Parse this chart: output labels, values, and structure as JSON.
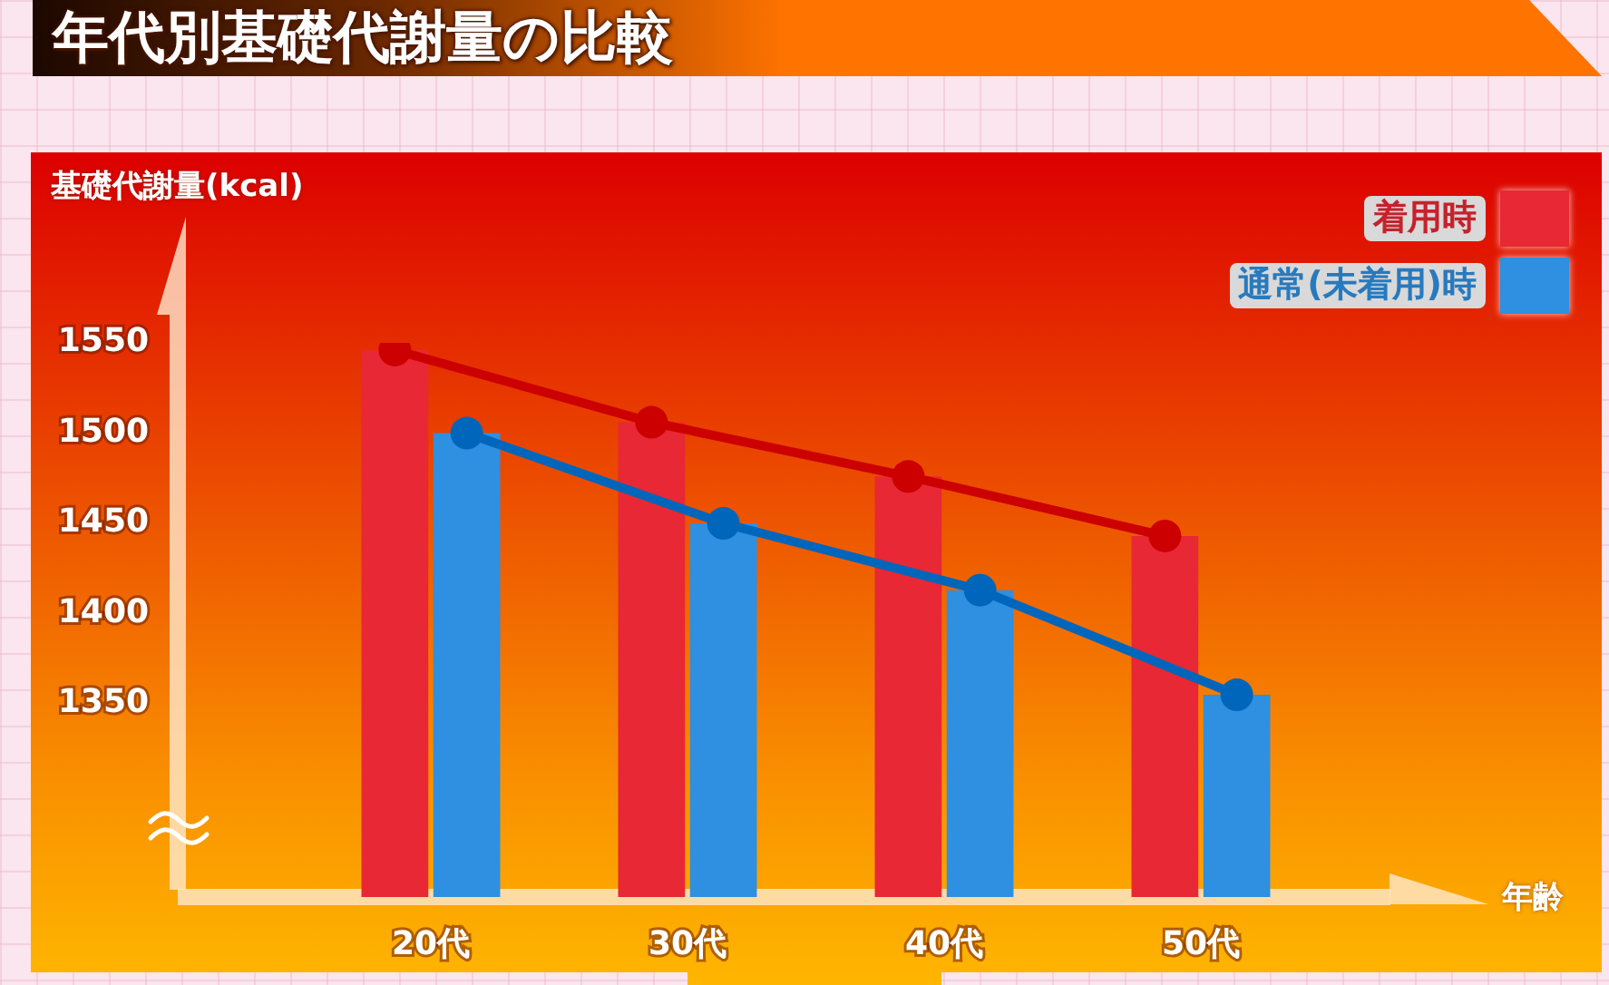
{
  "chart_data": {
    "type": "bar",
    "title": "年代別基礎代謝量の比較",
    "ylabel": "基礎代謝量(kcal)",
    "xlabel": "年齢",
    "categories": [
      "20代",
      "30代",
      "40代",
      "50代"
    ],
    "series": [
      {
        "name": "着用時",
        "color": "#e82834",
        "values": [
          1546,
          1506,
          1476,
          1443
        ]
      },
      {
        "name": "通常(未着用)時",
        "color": "#2f8fe0",
        "values": [
          1500,
          1450,
          1413,
          1355
        ]
      },
      {
        "type": "line",
        "color": "#cc0000",
        "values": [
          1546,
          1506,
          1476,
          1443
        ]
      },
      {
        "type": "line",
        "color": "#0066bb",
        "values": [
          1500,
          1450,
          1413,
          1355
        ]
      }
    ],
    "ylim": [
      1243,
      1550
    ],
    "yticks": [
      1350,
      1400,
      1450,
      1500,
      1550
    ],
    "grid": false,
    "legend": "top right",
    "marker": "circle",
    "line_style": "solid"
  }
}
